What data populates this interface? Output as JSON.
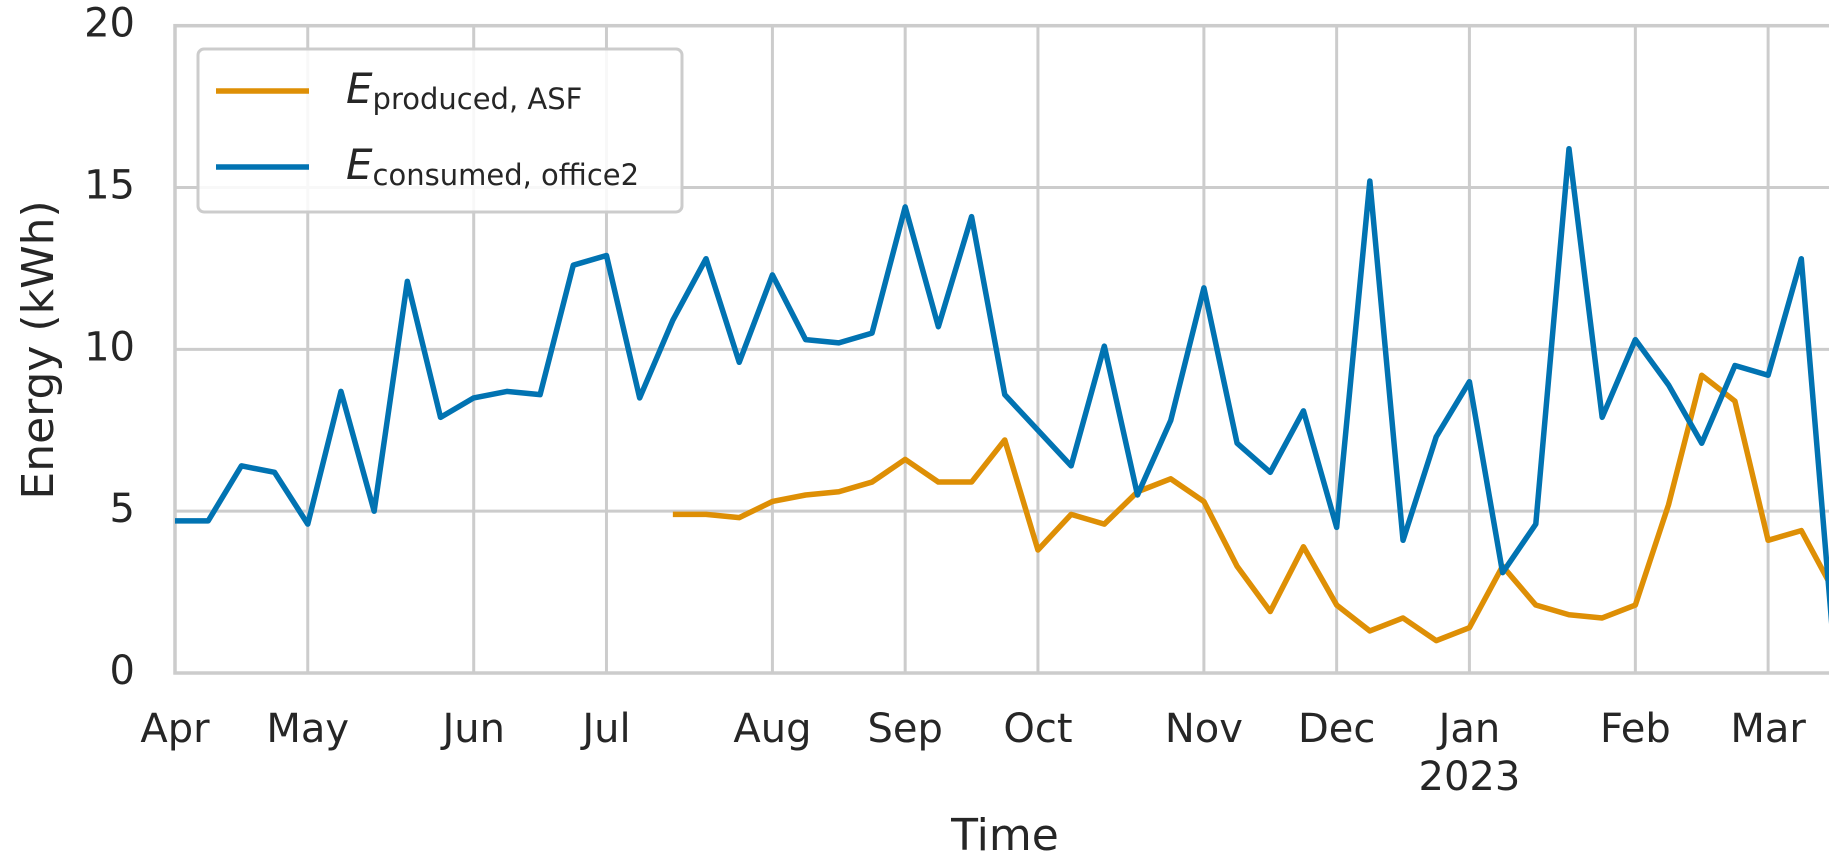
{
  "chart_data": {
    "type": "line",
    "xlabel": "Time",
    "ylabel": "Energy (kWh)",
    "categories": [
      "Apr",
      null,
      null,
      null,
      "May",
      null,
      null,
      null,
      null,
      "Jun",
      null,
      null,
      null,
      "Jul",
      null,
      null,
      null,
      null,
      "Aug",
      null,
      null,
      null,
      "Sep",
      null,
      null,
      null,
      "Oct",
      null,
      null,
      null,
      null,
      "Nov",
      null,
      null,
      null,
      "Dec",
      null,
      null,
      null,
      "Jan\n2023",
      null,
      null,
      null,
      null,
      "Feb",
      null,
      null,
      null,
      "Mar",
      null,
      null
    ],
    "series": [
      {
        "name": "E",
        "name_sub": "produced, ASF",
        "color": "#de8f05",
        "values": [
          null,
          null,
          null,
          null,
          null,
          null,
          null,
          null,
          null,
          null,
          null,
          null,
          null,
          null,
          null,
          4.9,
          4.9,
          4.8,
          5.3,
          5.5,
          5.6,
          5.9,
          6.6,
          5.9,
          5.9,
          7.2,
          3.8,
          4.9,
          4.6,
          5.6,
          6.0,
          5.3,
          3.3,
          1.9,
          3.9,
          2.1,
          1.3,
          1.7,
          1.0,
          1.4,
          3.3,
          2.1,
          1.8,
          1.7,
          2.1,
          5.2,
          9.2,
          8.4,
          4.1,
          4.4,
          2.5
        ]
      },
      {
        "name": "E",
        "name_sub": "consumed, office2",
        "color": "#0173b2",
        "values": [
          4.7,
          4.7,
          6.4,
          6.2,
          4.6,
          8.7,
          5.0,
          12.1,
          7.9,
          8.5,
          8.7,
          8.6,
          12.6,
          12.9,
          8.5,
          10.9,
          12.8,
          9.6,
          12.3,
          10.3,
          10.2,
          10.5,
          14.4,
          10.7,
          14.1,
          8.6,
          7.5,
          6.4,
          10.1,
          5.5,
          7.8,
          11.9,
          7.1,
          6.2,
          8.1,
          4.5,
          15.2,
          4.1,
          7.3,
          9.0,
          3.1,
          4.6,
          16.2,
          7.9,
          10.3,
          8.9,
          7.1,
          9.5,
          9.2,
          12.8,
          0.5
        ]
      }
    ],
    "ylim": [
      0,
      20
    ],
    "yticks": [
      0,
      5,
      10,
      15,
      20
    ],
    "grid": true,
    "legend": "upper left"
  }
}
